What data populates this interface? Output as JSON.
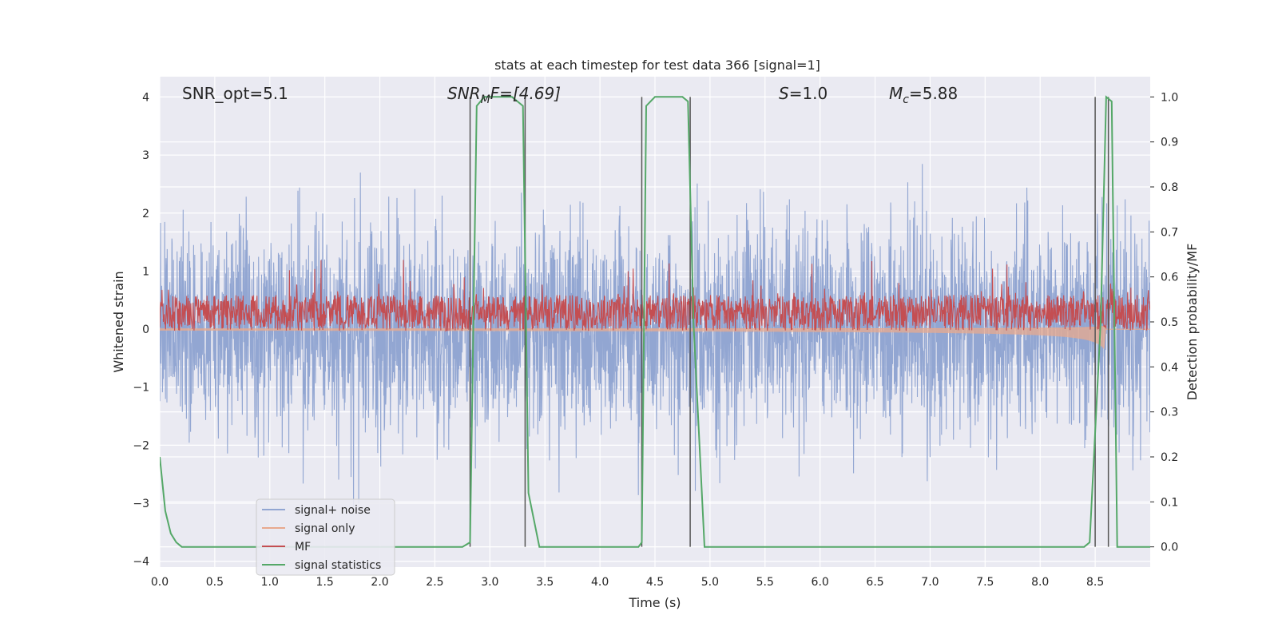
{
  "chart_data": {
    "type": "line",
    "title": "stats at each timestep for test data 366 [signal=1]",
    "xlabel": "Time (s)",
    "ylabel_left": "Whitened strain",
    "ylabel_right": "Detection probability/MF",
    "xlim": [
      0.0,
      9.0
    ],
    "ylim_left": [
      -4.1,
      4.35
    ],
    "ylim_right": [
      -0.045,
      1.045
    ],
    "x_ticks": [
      "0.0",
      "0.5",
      "1.0",
      "1.5",
      "2.0",
      "2.5",
      "3.0",
      "3.5",
      "4.0",
      "4.5",
      "5.0",
      "5.5",
      "6.0",
      "6.5",
      "7.0",
      "7.5",
      "8.0",
      "8.5"
    ],
    "y_ticks_left": [
      "4",
      "3",
      "2",
      "1",
      "0",
      "−1",
      "−2",
      "−3",
      "−4"
    ],
    "y_ticks_right": [
      "1.0",
      "0.9",
      "0.8",
      "0.7",
      "0.6",
      "0.5",
      "0.4",
      "0.3",
      "0.2",
      "0.1",
      "0.0"
    ],
    "grid": true,
    "legend_position": "lower-left",
    "annotations": {
      "snr_opt": "SNR_opt=5.1",
      "snr_mf_base": "SNR",
      "snr_mf_sub": "M",
      "snr_mf_tail": "F=[4.69]",
      "s_base": "S",
      "s_tail": "=1.0",
      "mc_base": "M",
      "mc_sub": "c",
      "mc_tail": "=5.88"
    },
    "series": [
      {
        "name": "signal+ noise",
        "color": "#92a6d2",
        "axis": "left",
        "amplitude_std": 0.9
      },
      {
        "name": "signal only",
        "color": "#e8a98e",
        "axis": "left",
        "chirp_end": 8.6,
        "final_amplitude": 0.4
      },
      {
        "name": "MF",
        "color": "#c44e52",
        "axis": "right",
        "baseline": 0.52,
        "spread": 0.04
      },
      {
        "name": "signal statistics",
        "color": "#55a868",
        "axis": "right",
        "x": [
          0.0,
          0.05,
          0.1,
          0.15,
          0.2,
          2.4,
          2.75,
          2.82,
          2.88,
          2.95,
          3.2,
          3.3,
          3.35,
          3.45,
          4.35,
          4.38,
          4.42,
          4.5,
          4.75,
          4.8,
          4.85,
          4.95,
          8.4,
          8.45,
          8.55,
          8.6,
          8.65,
          8.7,
          8.75,
          9.0
        ],
        "y": [
          0.2,
          0.08,
          0.03,
          0.01,
          0.0,
          0.0,
          0.0,
          0.01,
          0.98,
          1.0,
          1.0,
          0.98,
          0.12,
          0.0,
          0.0,
          0.01,
          0.98,
          1.0,
          1.0,
          0.99,
          0.5,
          0.0,
          0.0,
          0.01,
          0.5,
          1.0,
          0.99,
          0.0,
          0.0,
          0.0
        ]
      }
    ],
    "vertical_markers": {
      "color": "#555555",
      "x": [
        2.82,
        3.32,
        4.38,
        4.82,
        8.5,
        8.62
      ]
    }
  }
}
